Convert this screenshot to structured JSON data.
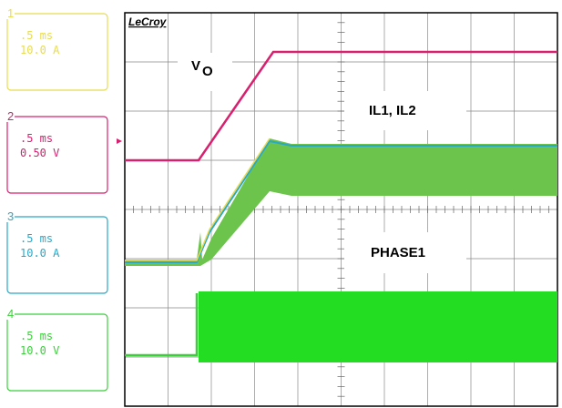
{
  "channels": [
    {
      "number": "1",
      "timebase": ".5 ms",
      "scale": "10.0 A",
      "color": "#e8dc50"
    },
    {
      "number": "2",
      "timebase": ".5 ms",
      "scale": "0.50 V",
      "color": "#d8206e"
    },
    {
      "number": "3",
      "timebase": ".5 ms",
      "scale": "10.0 A",
      "color": "#2aa8c8"
    },
    {
      "number": "4",
      "timebase": ".5 ms",
      "scale": "10.0 V",
      "color": "#3ccf3c"
    }
  ],
  "logo": "LeCroy",
  "annotations": {
    "vo": {
      "main": "V",
      "sub": "O"
    },
    "il": "IL1, IL2",
    "phase": "PHASE1"
  }
}
